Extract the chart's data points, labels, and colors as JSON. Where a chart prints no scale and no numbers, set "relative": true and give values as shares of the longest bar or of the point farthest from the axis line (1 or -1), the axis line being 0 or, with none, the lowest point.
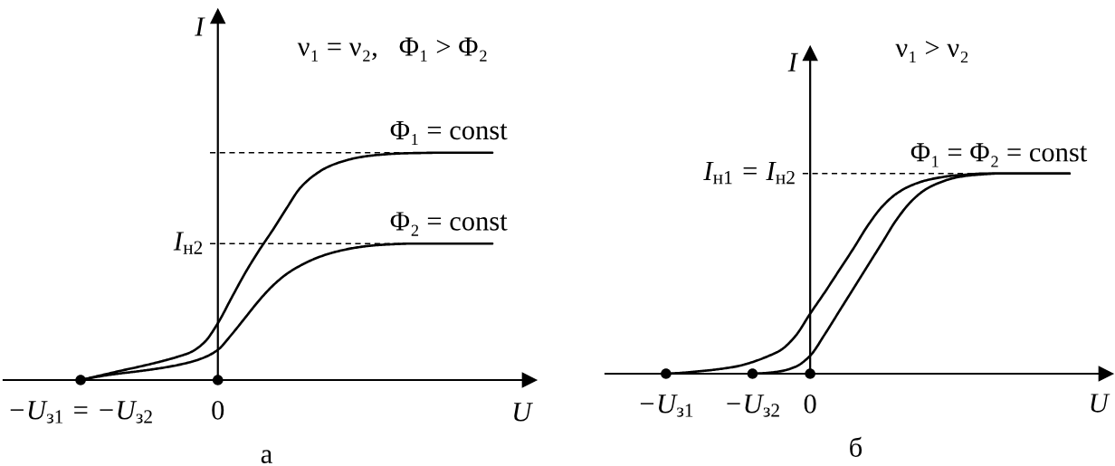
{
  "chart_data": [
    {
      "type": "line",
      "title": "а",
      "xlabel": "U",
      "ylabel": "I",
      "relative": true,
      "categories": [
        "−U$_{з1}$ = −U$_{з2}$",
        null,
        null,
        null,
        null,
        null,
        null,
        null,
        null,
        null,
        "0",
        null,
        null,
        null,
        null,
        null,
        null,
        null,
        null,
        null,
        null,
        null,
        null,
        null,
        null,
        null,
        null,
        null,
        null,
        null,
        null
      ],
      "annotations": [
        "ν₁ = ν₂,   Φ₁ > Φ₂"
      ],
      "ref_lines": [
        {
          "axis": "y",
          "value": 1,
          "line_style": "dashed",
          "color": "#000000"
        },
        {
          "axis": "y",
          "value": 0.6,
          "label": "I$_{н2}$",
          "line_style": "dashed",
          "color": "#000000"
        }
      ],
      "series": [
        {
          "name": "Φ₁ = const",
          "color": "#000000",
          "values": [
            0,
            0.014,
            0.028,
            0.042,
            0.055,
            0.069,
            0.084,
            0.101,
            0.122,
            0.165,
            0.25,
            0.362,
            0.472,
            0.57,
            0.66,
            0.755,
            0.845,
            0.9,
            0.937,
            0.96,
            0.976,
            0.986,
            0.992,
            0.996,
            0.998,
            0.999,
            1,
            1,
            1,
            1,
            1
          ]
        },
        {
          "name": "Φ₂ = const",
          "color": "#000000",
          "values": [
            0,
            0.012,
            0.022,
            0.03,
            0.037,
            0.045,
            0.054,
            0.065,
            0.079,
            0.099,
            0.133,
            0.2,
            0.275,
            0.35,
            0.415,
            0.466,
            0.503,
            0.532,
            0.554,
            0.57,
            0.582,
            0.59,
            0.595,
            0.598,
            0.6,
            0.6,
            0.6,
            0.6,
            0.6,
            0.6,
            0.6
          ]
        },
        {
          "type": "scatter",
          "marker": "circle",
          "color": "#000000",
          "values": [
            0,
            null,
            null,
            null,
            null,
            null,
            null,
            null,
            null,
            null,
            0,
            null,
            null,
            null,
            null,
            null,
            null,
            null,
            null,
            null,
            null,
            null,
            null,
            null,
            null,
            null,
            null,
            null,
            null,
            null,
            null
          ]
        }
      ]
    },
    {
      "type": "line",
      "title": "б",
      "xlabel": "U",
      "ylabel": "I",
      "relative": true,
      "categories": [
        "−U$_{з1}$",
        null,
        null,
        null,
        null,
        null,
        "−U$_{з2}$",
        null,
        null,
        null,
        "0",
        null,
        null,
        null,
        null,
        null,
        null,
        null,
        null,
        null,
        null,
        null,
        null,
        null,
        null,
        null,
        null,
        null,
        null
      ],
      "annotations": [
        "ν₁ > ν₂",
        {
          "text": "Φ₁ = Φ₂ = const",
          "y": 1
        }
      ],
      "ref_lines": [
        {
          "axis": "y",
          "value": 1,
          "label": "I$_{н1}$ = I$_{н2}$",
          "line_style": "dashed",
          "color": "#000000"
        }
      ],
      "series": [
        {
          "color": "#000000",
          "values": [
            0,
            0.004,
            0.01,
            0.017,
            0.026,
            0.038,
            0.058,
            0.085,
            0.12,
            0.19,
            0.3,
            0.405,
            0.515,
            0.625,
            0.74,
            0.835,
            0.9,
            0.94,
            0.965,
            0.98,
            0.99,
            0.995,
            1,
            1,
            1,
            1,
            1,
            1,
            1
          ]
        },
        {
          "color": "#000000",
          "values": [
            null,
            null,
            null,
            null,
            null,
            null,
            0,
            0.004,
            0.013,
            0.035,
            0.09,
            0.195,
            0.31,
            0.425,
            0.54,
            0.655,
            0.77,
            0.86,
            0.92,
            0.955,
            0.978,
            0.99,
            0.996,
            1,
            1,
            1,
            1,
            1,
            1
          ]
        },
        {
          "type": "scatter",
          "marker": "circle",
          "color": "#000000",
          "values": [
            0,
            null,
            null,
            null,
            null,
            null,
            0,
            null,
            null,
            null,
            0,
            null,
            null,
            null,
            null,
            null,
            null,
            null,
            null,
            null,
            null,
            null,
            null,
            null,
            null,
            null,
            null,
            null,
            null
          ]
        }
      ]
    }
  ]
}
